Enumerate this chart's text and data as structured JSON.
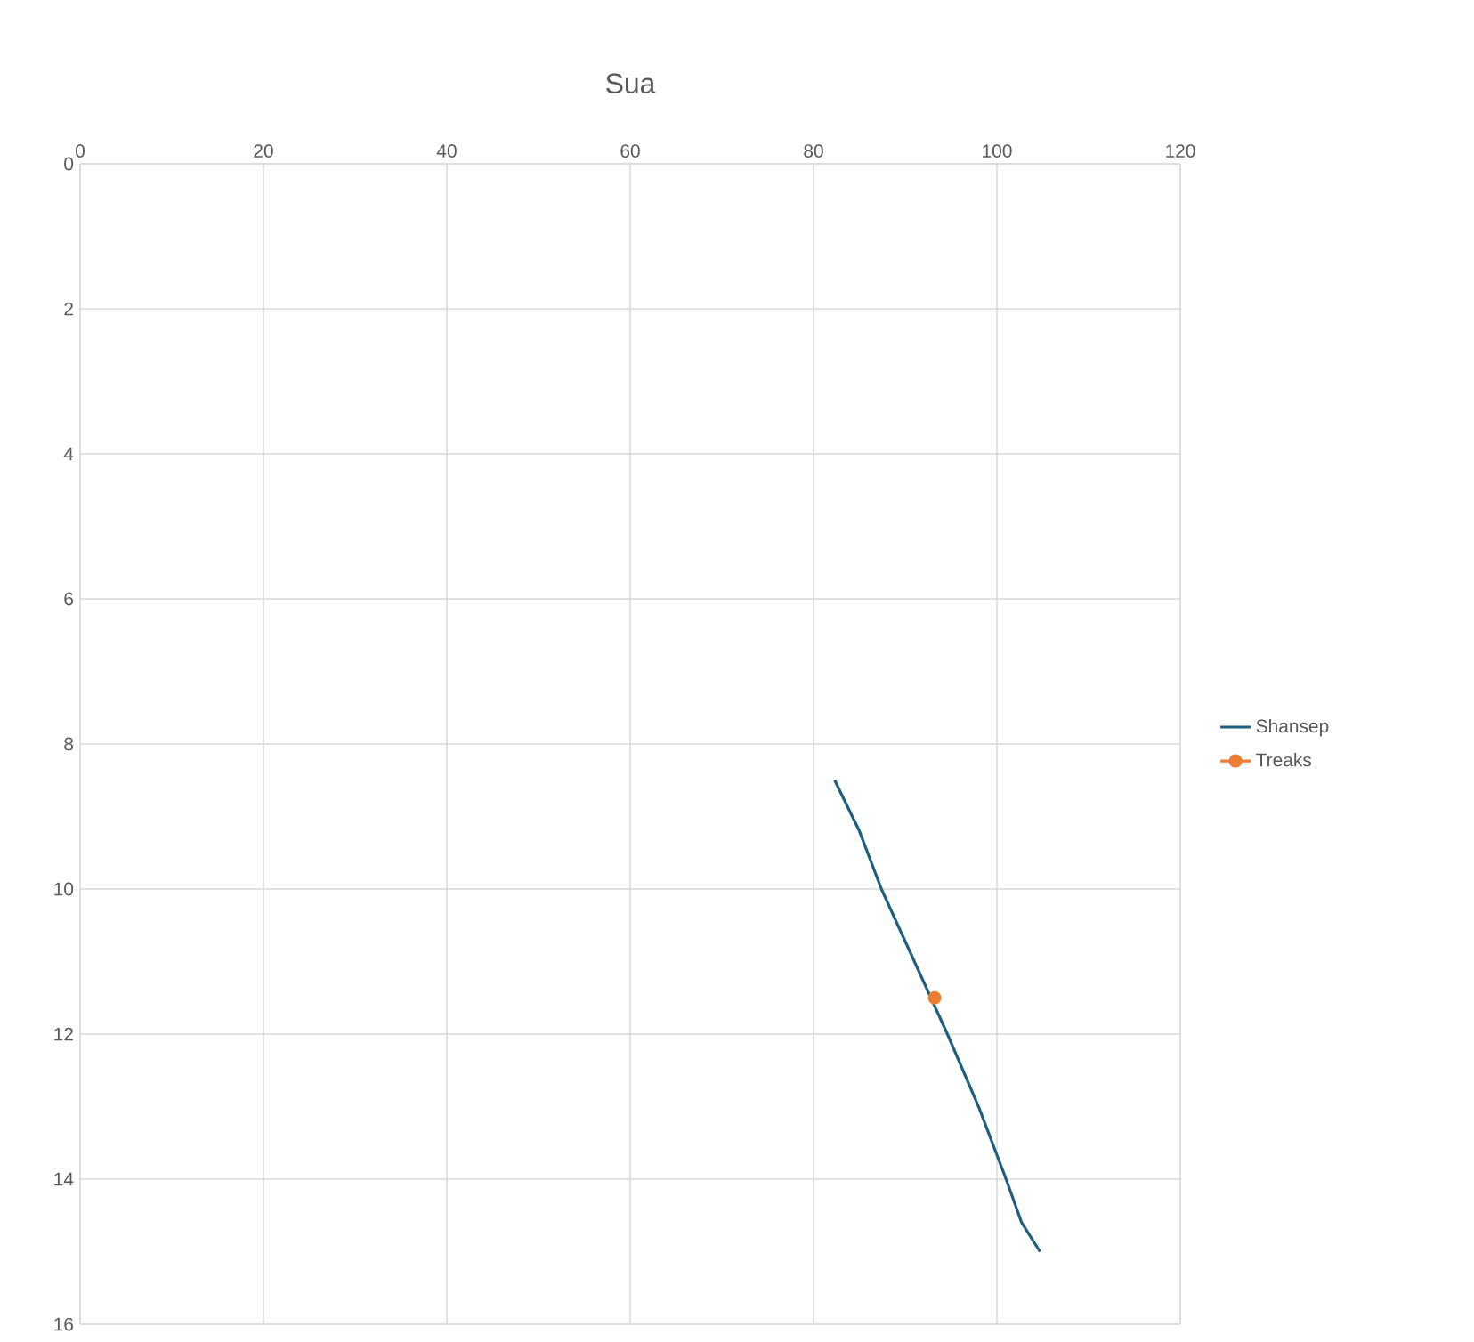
{
  "chart_data": {
    "type": "line",
    "title": "Sua",
    "series": [
      {
        "name": "Shansep",
        "color": "#1f5f7f",
        "marker": "none",
        "x": [
          82.3,
          85.0,
          87.4,
          91.0,
          94.6,
          98.0,
          101.0,
          102.7,
          104.7
        ],
        "values": [
          8.5,
          9.2,
          10.0,
          11.0,
          12.0,
          13.0,
          14.0,
          14.6,
          15.0
        ]
      },
      {
        "name": "Treaks",
        "color": "#ed7d31",
        "marker": "circle",
        "x": [
          93.2
        ],
        "values": [
          11.5
        ]
      }
    ],
    "xlim": [
      0,
      120
    ],
    "xticks": [
      0,
      20,
      40,
      60,
      80,
      100,
      120
    ],
    "ylim": [
      16,
      0
    ],
    "yticks": [
      0,
      2,
      4,
      6,
      8,
      10,
      12,
      14,
      16
    ],
    "grid": true,
    "legend": "right"
  }
}
